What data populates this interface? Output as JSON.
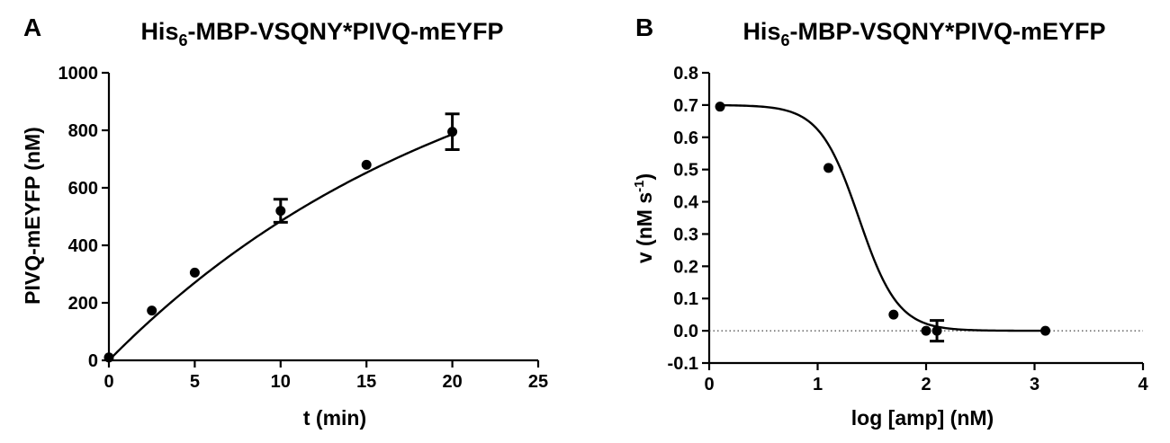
{
  "chart_data": [
    {
      "panel_label": "A",
      "type": "scatter",
      "title_main": "His",
      "title_sub": "6",
      "title_rest": "-MBP-VSQNY*PIVQ-mEYFP",
      "xlabel": "t (min)",
      "ylabel": "PIVQ-mEYFP (nM)",
      "xlim": [
        0,
        25
      ],
      "ylim": [
        0,
        1000
      ],
      "xticks": [
        0,
        5,
        10,
        15,
        20,
        25
      ],
      "yticks": [
        0,
        200,
        400,
        600,
        800,
        1000
      ],
      "points": [
        {
          "x": 0,
          "y": 10,
          "err": 0
        },
        {
          "x": 2.5,
          "y": 173,
          "err": 0
        },
        {
          "x": 5,
          "y": 305,
          "err": 0
        },
        {
          "x": 10,
          "y": 520,
          "err": 40
        },
        {
          "x": 15,
          "y": 680,
          "err": 0
        },
        {
          "x": 20,
          "y": 795,
          "err": 62
        }
      ],
      "fit": {
        "model": "one-phase association",
        "plateau": 1290,
        "k": 0.047,
        "y0": 0
      }
    },
    {
      "panel_label": "B",
      "type": "scatter",
      "title_main": "His",
      "title_sub": "6",
      "title_rest": "-MBP-VSQNY*PIVQ-mEYFP",
      "xlabel": "log [amp] (nM)",
      "ylabel_main": "v (nM s",
      "ylabel_sup": "-1",
      "ylabel_end": ")",
      "xlim": [
        0,
        4
      ],
      "ylim": [
        -0.1,
        0.8
      ],
      "xticks": [
        0,
        1,
        2,
        3,
        4
      ],
      "yticks": [
        -0.1,
        0.0,
        0.1,
        0.2,
        0.3,
        0.4,
        0.5,
        0.6,
        0.7,
        0.8
      ],
      "ytick_labels": [
        "-0.1",
        "0.0",
        "0.1",
        "0.2",
        "0.3",
        "0.4",
        "0.5",
        "0.6",
        "0.7",
        "0.8"
      ],
      "reference_line_y": 0,
      "points": [
        {
          "x": 0.1,
          "y": 0.695,
          "err": 0
        },
        {
          "x": 1.1,
          "y": 0.505,
          "err": 0
        },
        {
          "x": 1.7,
          "y": 0.05,
          "err": 0
        },
        {
          "x": 2.0,
          "y": 0.0,
          "err": 0
        },
        {
          "x": 2.1,
          "y": 0.0,
          "err": 0.032
        },
        {
          "x": 3.1,
          "y": 0.0,
          "err": 0
        }
      ],
      "fit": {
        "model": "sigmoidal dose-response",
        "top": 0.7,
        "bottom": 0.0,
        "logIC50": 1.38,
        "hill": -2.4
      }
    }
  ]
}
